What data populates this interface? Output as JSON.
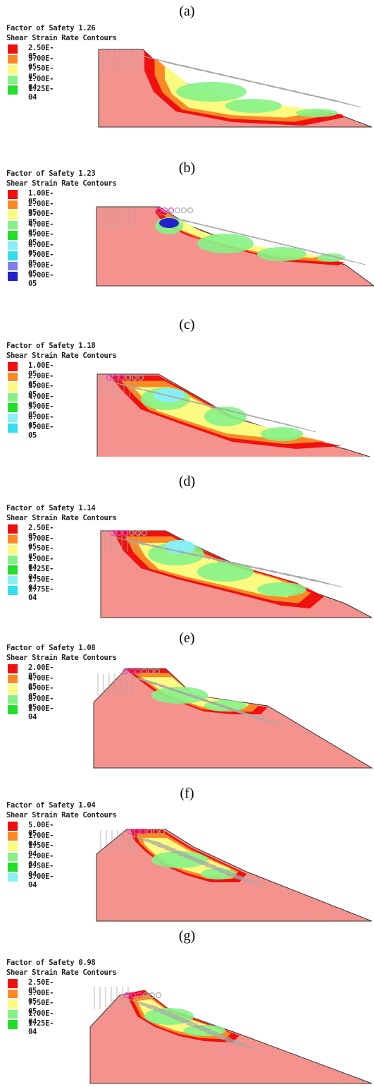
{
  "common": {
    "fos_label": "Factor of Safety",
    "contours_title": "Shear Strain Rate Contours"
  },
  "colors": {
    "background_soil": "#f4928e",
    "red": "#f01010",
    "orange": "#fb8a25",
    "yellow": "#fbfb82",
    "light_green": "#86f286",
    "green": "#22e02a",
    "cyan_light": "#88f0f2",
    "cyan": "#33dfef",
    "blue_light": "#8080f2",
    "blue": "#2222cc",
    "pink": "#f6a1a1",
    "arrow": "#a8a8a8",
    "marker_circle": "#e040e0"
  },
  "panels": [
    {
      "label": "(a)",
      "fos": "1.26",
      "legend": [
        {
          "value": "2.50E-05",
          "color": "#f01010"
        },
        {
          "value": "5.00E-05",
          "color": "#fb8a25"
        },
        {
          "value": "7.50E-05",
          "color": "#fbfb82"
        },
        {
          "value": "1.00E-04",
          "color": "#86f286"
        },
        {
          "value": "1.25E-04",
          "color": "#22e02a"
        }
      ]
    },
    {
      "label": "(b)",
      "fos": "1.23",
      "legend": [
        {
          "value": "1.00E-05",
          "color": "#f01010"
        },
        {
          "value": "2.00E-05",
          "color": "#fb8a25"
        },
        {
          "value": "3.00E-05",
          "color": "#fbfb82"
        },
        {
          "value": "4.00E-05",
          "color": "#86f286"
        },
        {
          "value": "5.00E-05",
          "color": "#22e02a"
        },
        {
          "value": "6.00E-05",
          "color": "#88f0f2"
        },
        {
          "value": "7.00E-05",
          "color": "#33dfef"
        },
        {
          "value": "8.00E-05",
          "color": "#8080f2"
        },
        {
          "value": "9.00E-05",
          "color": "#2222cc"
        }
      ]
    },
    {
      "label": "(c)",
      "fos": "1.18",
      "legend": [
        {
          "value": "1.00E-05",
          "color": "#f01010"
        },
        {
          "value": "2.00E-05",
          "color": "#fb8a25"
        },
        {
          "value": "3.00E-05",
          "color": "#fbfb82"
        },
        {
          "value": "4.00E-05",
          "color": "#86f286"
        },
        {
          "value": "5.00E-05",
          "color": "#22e02a"
        },
        {
          "value": "6.00E-05",
          "color": "#88f0f2"
        },
        {
          "value": "7.00E-05",
          "color": "#33dfef"
        }
      ]
    },
    {
      "label": "(d)",
      "fos": "1.14",
      "legend": [
        {
          "value": "2.50E-05",
          "color": "#f01010"
        },
        {
          "value": "5.00E-05",
          "color": "#fb8a25"
        },
        {
          "value": "7.50E-05",
          "color": "#fbfb82"
        },
        {
          "value": "1.00E-04",
          "color": "#86f286"
        },
        {
          "value": "1.25E-04",
          "color": "#22e02a"
        },
        {
          "value": "1.50E-04",
          "color": "#88f0f2"
        },
        {
          "value": "1.75E-04",
          "color": "#33dfef"
        }
      ]
    },
    {
      "label": "(e)",
      "fos": "1.08",
      "legend": [
        {
          "value": "2.00E-05",
          "color": "#f01010"
        },
        {
          "value": "4.00E-05",
          "color": "#fb8a25"
        },
        {
          "value": "6.00E-05",
          "color": "#fbfb82"
        },
        {
          "value": "8.00E-05",
          "color": "#86f286"
        },
        {
          "value": "1.00E-04",
          "color": "#22e02a"
        }
      ]
    },
    {
      "label": "(f)",
      "fos": "1.04",
      "legend": [
        {
          "value": "5.00E-05",
          "color": "#f01010"
        },
        {
          "value": "1.00E-04",
          "color": "#fb8a25"
        },
        {
          "value": "1.50E-04",
          "color": "#fbfb82"
        },
        {
          "value": "2.00E-04",
          "color": "#86f286"
        },
        {
          "value": "2.50E-04",
          "color": "#22e02a"
        },
        {
          "value": "3.00E-04",
          "color": "#88f0f2"
        }
      ]
    },
    {
      "label": "(g)",
      "fos": "0.98",
      "legend": [
        {
          "value": "2.50E-05",
          "color": "#f01010"
        },
        {
          "value": "5.00E-05",
          "color": "#fb8a25"
        },
        {
          "value": "7.50E-05",
          "color": "#fbfb82"
        },
        {
          "value": "1.00E-04",
          "color": "#86f286"
        },
        {
          "value": "1.25E-04",
          "color": "#22e02a"
        }
      ]
    }
  ]
}
